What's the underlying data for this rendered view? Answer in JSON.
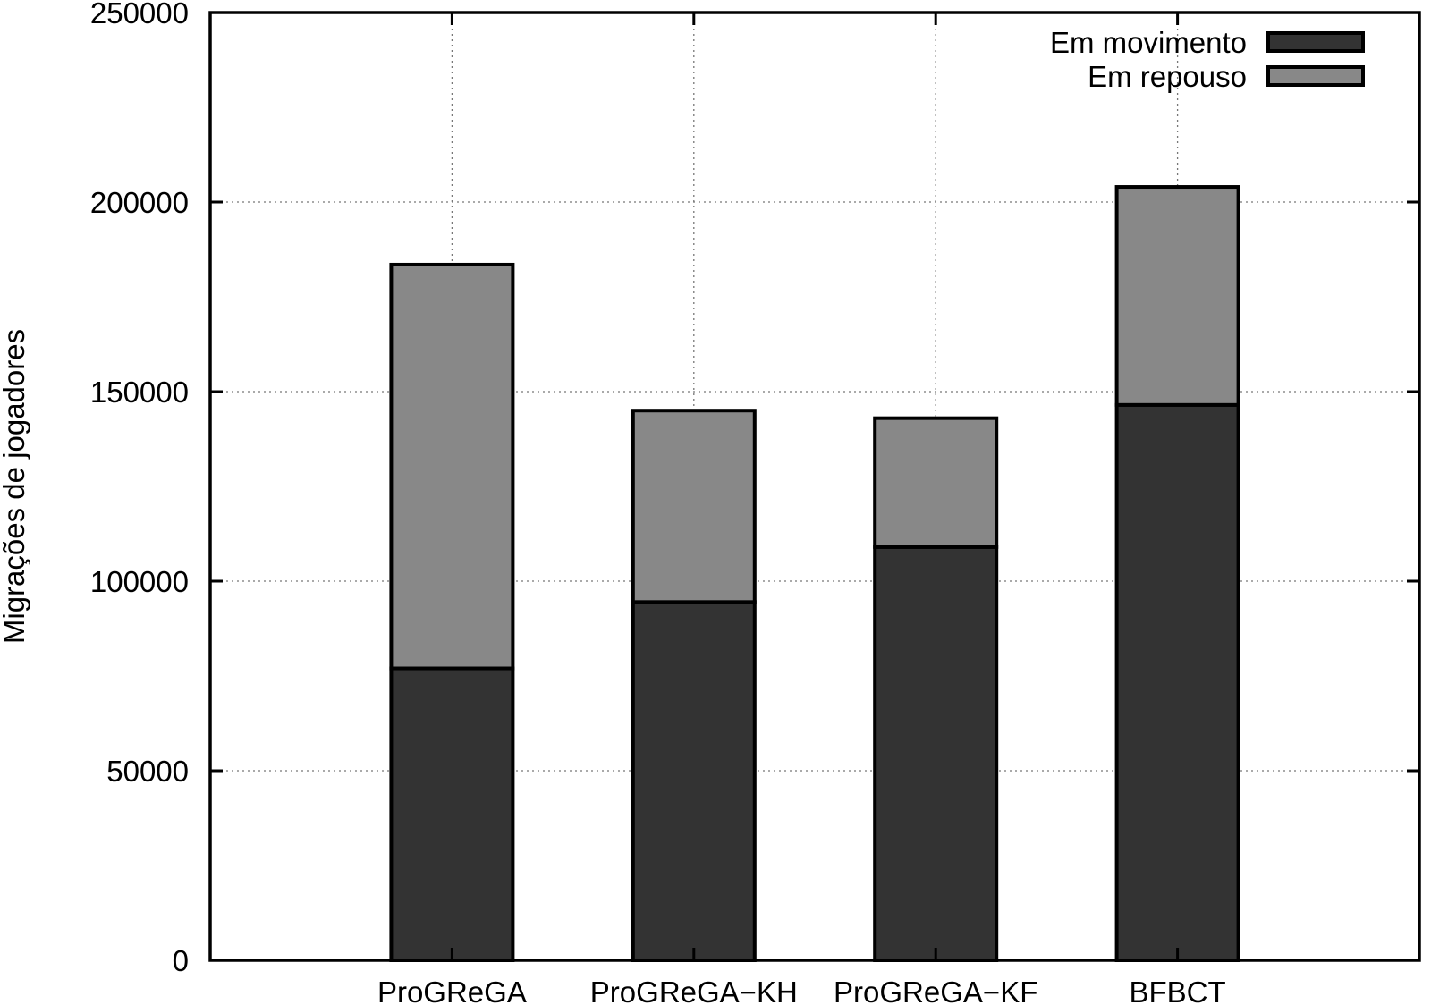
{
  "chart_data": {
    "type": "bar",
    "stacked": true,
    "title": "",
    "xlabel": "",
    "ylabel": "Migrações de jogadores",
    "categories": [
      "ProGReGA",
      "ProGReGA−KH",
      "ProGReGA−KF",
      "BFBCT"
    ],
    "ylim": [
      0,
      250000
    ],
    "yticks": [
      0,
      50000,
      100000,
      150000,
      200000,
      250000
    ],
    "ytick_labels": [
      "0",
      "50000",
      "100000",
      "150000",
      "200000",
      "250000"
    ],
    "grid": true,
    "legend_position": "top-right",
    "series": [
      {
        "name": "Em movimento",
        "color": "#333333",
        "values": [
          77000,
          94500,
          109000,
          146500
        ]
      },
      {
        "name": "Em repouso",
        "color": "#888888",
        "values": [
          106500,
          50500,
          34000,
          57500
        ]
      }
    ]
  }
}
